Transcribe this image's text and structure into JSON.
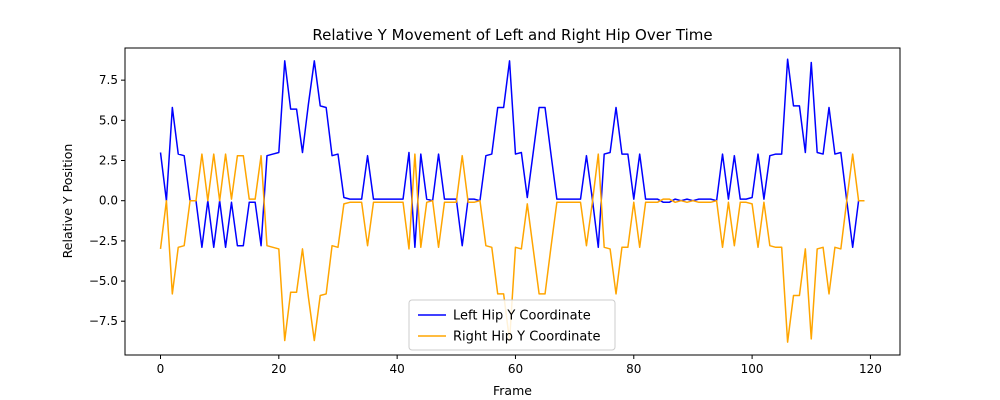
{
  "chart_data": {
    "type": "line",
    "title": "Relative Y Movement of Left and Right Hip Over Time",
    "xlabel": "Frame",
    "ylabel": "Relative Y Position",
    "xlim": [
      -6,
      125
    ],
    "ylim": [
      -9.6,
      9.5
    ],
    "xticks": [
      0,
      20,
      40,
      60,
      80,
      100,
      120
    ],
    "yticks": [
      -7.5,
      -5.0,
      -2.5,
      0.0,
      2.5,
      5.0,
      7.5
    ],
    "ytick_labels": [
      "−7.5",
      "−5.0",
      "−2.5",
      "0.0",
      "2.5",
      "5.0",
      "7.5"
    ],
    "legend_position": "lower-center",
    "grid": false,
    "series": [
      {
        "name": "Left Hip Y Coordinate",
        "color": "#0000ff",
        "x": [
          0,
          1,
          2,
          3,
          4,
          5,
          6,
          7,
          8,
          9,
          10,
          11,
          12,
          13,
          14,
          15,
          16,
          17,
          18,
          19,
          20,
          21,
          22,
          23,
          24,
          25,
          26,
          27,
          28,
          29,
          30,
          31,
          32,
          33,
          34,
          35,
          36,
          37,
          38,
          39,
          40,
          41,
          42,
          43,
          44,
          45,
          46,
          47,
          48,
          49,
          50,
          51,
          52,
          53,
          54,
          55,
          56,
          57,
          58,
          59,
          60,
          61,
          62,
          63,
          64,
          65,
          66,
          67,
          68,
          69,
          70,
          71,
          72,
          73,
          74,
          75,
          76,
          77,
          78,
          79,
          80,
          81,
          82,
          83,
          84,
          85,
          86,
          87,
          88,
          89,
          90,
          91,
          92,
          93,
          94,
          95,
          96,
          97,
          98,
          99,
          100,
          101,
          102,
          103,
          104,
          105,
          106,
          107,
          108,
          109,
          110,
          111,
          112,
          113,
          114,
          115,
          116,
          117,
          118,
          119
        ],
        "y": [
          3.0,
          0.0,
          5.8,
          2.9,
          2.8,
          0.0,
          0.0,
          -2.9,
          0.0,
          -2.9,
          0.0,
          -2.9,
          -0.1,
          -2.8,
          -2.8,
          -0.1,
          -0.1,
          -2.8,
          2.8,
          2.9,
          3.0,
          8.7,
          5.7,
          5.7,
          3.0,
          6.0,
          8.7,
          5.9,
          5.8,
          2.8,
          2.9,
          0.2,
          0.1,
          0.1,
          0.1,
          2.8,
          0.1,
          0.1,
          0.1,
          0.1,
          0.1,
          0.1,
          3.0,
          -2.9,
          2.9,
          0.1,
          0.0,
          2.9,
          0.1,
          0.1,
          0.1,
          -2.8,
          0.1,
          0.1,
          0.0,
          2.8,
          2.9,
          5.8,
          5.8,
          8.7,
          2.9,
          3.0,
          0.2,
          3.0,
          5.8,
          5.8,
          2.9,
          0.1,
          0.1,
          0.1,
          0.1,
          0.1,
          2.8,
          0.1,
          -2.9,
          2.9,
          3.0,
          5.8,
          2.9,
          2.9,
          0.1,
          2.9,
          0.1,
          0.1,
          0.1,
          -0.1,
          -0.1,
          0.1,
          0.0,
          0.1,
          0.0,
          0.1,
          0.1,
          0.1,
          0.0,
          2.9,
          0.1,
          2.8,
          0.1,
          0.1,
          0.2,
          2.9,
          0.1,
          2.8,
          2.9,
          2.9,
          8.8,
          5.9,
          5.9,
          3.0,
          8.6,
          3.0,
          2.9,
          5.8,
          2.9,
          3.0,
          0.0,
          -2.9,
          0.0,
          0.0
        ]
      },
      {
        "name": "Right Hip Y Coordinate",
        "color": "#ffa500",
        "x": [
          0,
          1,
          2,
          3,
          4,
          5,
          6,
          7,
          8,
          9,
          10,
          11,
          12,
          13,
          14,
          15,
          16,
          17,
          18,
          19,
          20,
          21,
          22,
          23,
          24,
          25,
          26,
          27,
          28,
          29,
          30,
          31,
          32,
          33,
          34,
          35,
          36,
          37,
          38,
          39,
          40,
          41,
          42,
          43,
          44,
          45,
          46,
          47,
          48,
          49,
          50,
          51,
          52,
          53,
          54,
          55,
          56,
          57,
          58,
          59,
          60,
          61,
          62,
          63,
          64,
          65,
          66,
          67,
          68,
          69,
          70,
          71,
          72,
          73,
          74,
          75,
          76,
          77,
          78,
          79,
          80,
          81,
          82,
          83,
          84,
          85,
          86,
          87,
          88,
          89,
          90,
          91,
          92,
          93,
          94,
          95,
          96,
          97,
          98,
          99,
          100,
          101,
          102,
          103,
          104,
          105,
          106,
          107,
          108,
          109,
          110,
          111,
          112,
          113,
          114,
          115,
          116,
          117,
          118,
          119
        ],
        "y": [
          -3.0,
          0.0,
          -5.8,
          -2.9,
          -2.8,
          0.0,
          0.0,
          2.9,
          0.0,
          2.9,
          0.0,
          2.9,
          0.1,
          2.8,
          2.8,
          0.1,
          0.1,
          2.8,
          -2.8,
          -2.9,
          -3.0,
          -8.7,
          -5.7,
          -5.7,
          -3.0,
          -6.0,
          -8.7,
          -5.9,
          -5.8,
          -2.8,
          -2.9,
          -0.2,
          -0.1,
          -0.1,
          -0.1,
          -2.8,
          -0.1,
          -0.1,
          -0.1,
          -0.1,
          -0.1,
          -0.1,
          -3.0,
          2.9,
          -2.9,
          -0.1,
          0.0,
          -2.9,
          -0.1,
          -0.1,
          -0.1,
          2.8,
          -0.1,
          -0.1,
          0.0,
          -2.8,
          -2.9,
          -5.8,
          -5.8,
          -8.7,
          -2.9,
          -3.0,
          -0.2,
          -3.0,
          -5.8,
          -5.8,
          -2.9,
          -0.1,
          -0.1,
          -0.1,
          -0.1,
          -0.1,
          -2.8,
          -0.1,
          2.9,
          -2.9,
          -3.0,
          -5.8,
          -2.9,
          -2.9,
          -0.1,
          -2.9,
          -0.1,
          -0.1,
          -0.1,
          0.1,
          0.1,
          -0.1,
          0.0,
          -0.1,
          0.0,
          -0.1,
          -0.1,
          -0.1,
          0.0,
          -2.9,
          -0.1,
          -2.8,
          -0.1,
          -0.1,
          -0.2,
          -2.9,
          -0.1,
          -2.8,
          -2.9,
          -2.9,
          -8.8,
          -5.9,
          -5.9,
          -3.0,
          -8.6,
          -3.0,
          -2.9,
          -5.8,
          -2.9,
          -3.0,
          0.0,
          2.9,
          0.0,
          0.0
        ]
      }
    ]
  }
}
